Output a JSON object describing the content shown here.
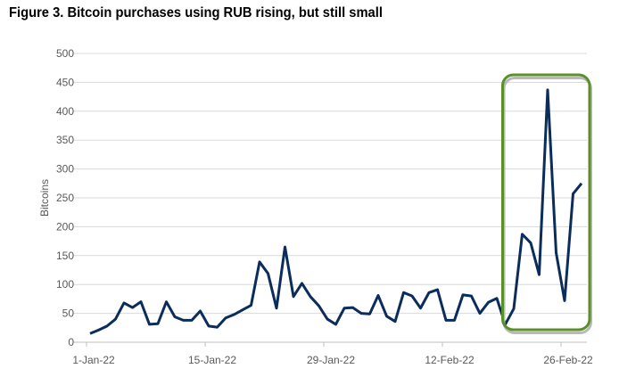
{
  "chart_data": {
    "type": "line",
    "title": "Figure 3. Bitcoin purchases using RUB rising, but still small",
    "xlabel": "",
    "ylabel": "Bitcoins",
    "ylim": [
      0,
      500
    ],
    "yticks": [
      0,
      50,
      100,
      150,
      200,
      250,
      300,
      350,
      400,
      450,
      500
    ],
    "xtick_labels": [
      "1-Jan-22",
      "15-Jan-22",
      "29-Jan-22",
      "12-Feb-22",
      "26-Feb-22"
    ],
    "xtick_day_index": [
      0,
      14,
      28,
      42,
      56
    ],
    "grid": true,
    "line_color": "#0b2d5b",
    "highlight_color": "#5a8f2a",
    "highlight_day_range": [
      49,
      58
    ],
    "series": [
      {
        "name": "Bitcoins",
        "start": "1-Jan-22",
        "values": [
          15,
          21,
          28,
          40,
          68,
          60,
          70,
          31,
          32,
          70,
          44,
          38,
          38,
          54,
          28,
          26,
          42,
          48,
          56,
          64,
          139,
          119,
          59,
          165,
          79,
          102,
          79,
          63,
          40,
          31,
          59,
          60,
          50,
          49,
          81,
          45,
          36,
          86,
          80,
          59,
          86,
          91,
          38,
          38,
          82,
          80,
          50,
          69,
          76,
          31,
          58,
          187,
          172,
          117,
          437,
          155,
          72,
          257,
          275
        ]
      }
    ]
  }
}
